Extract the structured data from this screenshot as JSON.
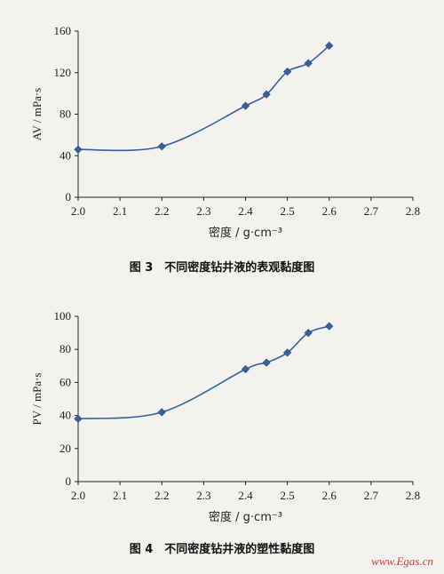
{
  "chart_data": [
    {
      "type": "line",
      "title": "",
      "xlabel": "密度 / g·cm⁻³",
      "ylabel": "AV / mPa·s",
      "xlim": [
        2.0,
        2.8
      ],
      "ylim": [
        0,
        160
      ],
      "xticks": [
        "2.0",
        "2.1",
        "2.2",
        "2.3",
        "2.4",
        "2.5",
        "2.6",
        "2.7",
        "2.8"
      ],
      "yticks": [
        "0",
        "40",
        "80",
        "120",
        "160"
      ],
      "x": [
        2.0,
        2.2,
        2.4,
        2.45,
        2.5,
        2.55,
        2.6
      ],
      "series": [
        {
          "values": [
            46,
            49,
            88,
            99,
            121,
            129,
            146
          ]
        }
      ],
      "line_color": "#3a5f9e",
      "grid": false,
      "caption": "图 3　不同密度钻井液的表观黏度图"
    },
    {
      "type": "line",
      "title": "",
      "xlabel": "密度 / g·cm⁻³",
      "ylabel": "PV / mPa·s",
      "xlim": [
        2.0,
        2.8
      ],
      "ylim": [
        0,
        100
      ],
      "xticks": [
        "2.0",
        "2.1",
        "2.2",
        "2.3",
        "2.4",
        "2.5",
        "2.6",
        "2.7",
        "2.8"
      ],
      "yticks": [
        "0",
        "20",
        "40",
        "60",
        "80",
        "100"
      ],
      "x": [
        2.0,
        2.2,
        2.4,
        2.45,
        2.5,
        2.55,
        2.6
      ],
      "series": [
        {
          "values": [
            38,
            42,
            68,
            72,
            78,
            90,
            94
          ]
        }
      ],
      "line_color": "#3a5f9e",
      "grid": false,
      "caption": "图 4　不同密度钻井液的塑性黏度图"
    }
  ],
  "watermark": "www.Egas.cn"
}
